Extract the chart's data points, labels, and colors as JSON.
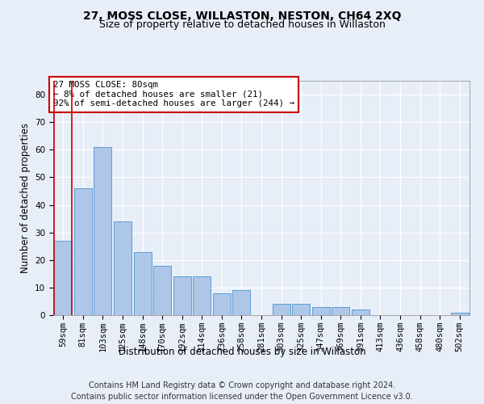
{
  "title": "27, MOSS CLOSE, WILLASTON, NESTON, CH64 2XQ",
  "subtitle": "Size of property relative to detached houses in Willaston",
  "xlabel": "Distribution of detached houses by size in Willaston",
  "ylabel": "Number of detached properties",
  "categories": [
    "59sqm",
    "81sqm",
    "103sqm",
    "125sqm",
    "148sqm",
    "170sqm",
    "192sqm",
    "214sqm",
    "236sqm",
    "258sqm",
    "281sqm",
    "303sqm",
    "325sqm",
    "347sqm",
    "369sqm",
    "391sqm",
    "413sqm",
    "436sqm",
    "458sqm",
    "480sqm",
    "502sqm"
  ],
  "values": [
    27,
    46,
    61,
    34,
    23,
    18,
    14,
    14,
    8,
    9,
    0,
    4,
    4,
    3,
    3,
    2,
    0,
    0,
    0,
    0,
    1
  ],
  "bar_color": "#aec6e8",
  "bar_edge_color": "#5a9fd4",
  "annotation_line1": "27 MOSS CLOSE: 80sqm",
  "annotation_line2": "← 8% of detached houses are smaller (21)",
  "annotation_line3": "92% of semi-detached houses are larger (244) →",
  "annotation_box_color": "#ffffff",
  "annotation_box_edge_color": "#cc0000",
  "marker_line_color": "#cc0000",
  "ylim": [
    0,
    85
  ],
  "yticks": [
    0,
    10,
    20,
    30,
    40,
    50,
    60,
    70,
    80
  ],
  "footer_line1": "Contains HM Land Registry data © Crown copyright and database right 2024.",
  "footer_line2": "Contains public sector information licensed under the Open Government Licence v3.0.",
  "bg_color": "#e8eef8",
  "grid_color": "#ffffff",
  "title_fontsize": 10,
  "subtitle_fontsize": 9,
  "axis_label_fontsize": 8.5,
  "tick_fontsize": 7.5,
  "footer_fontsize": 7
}
